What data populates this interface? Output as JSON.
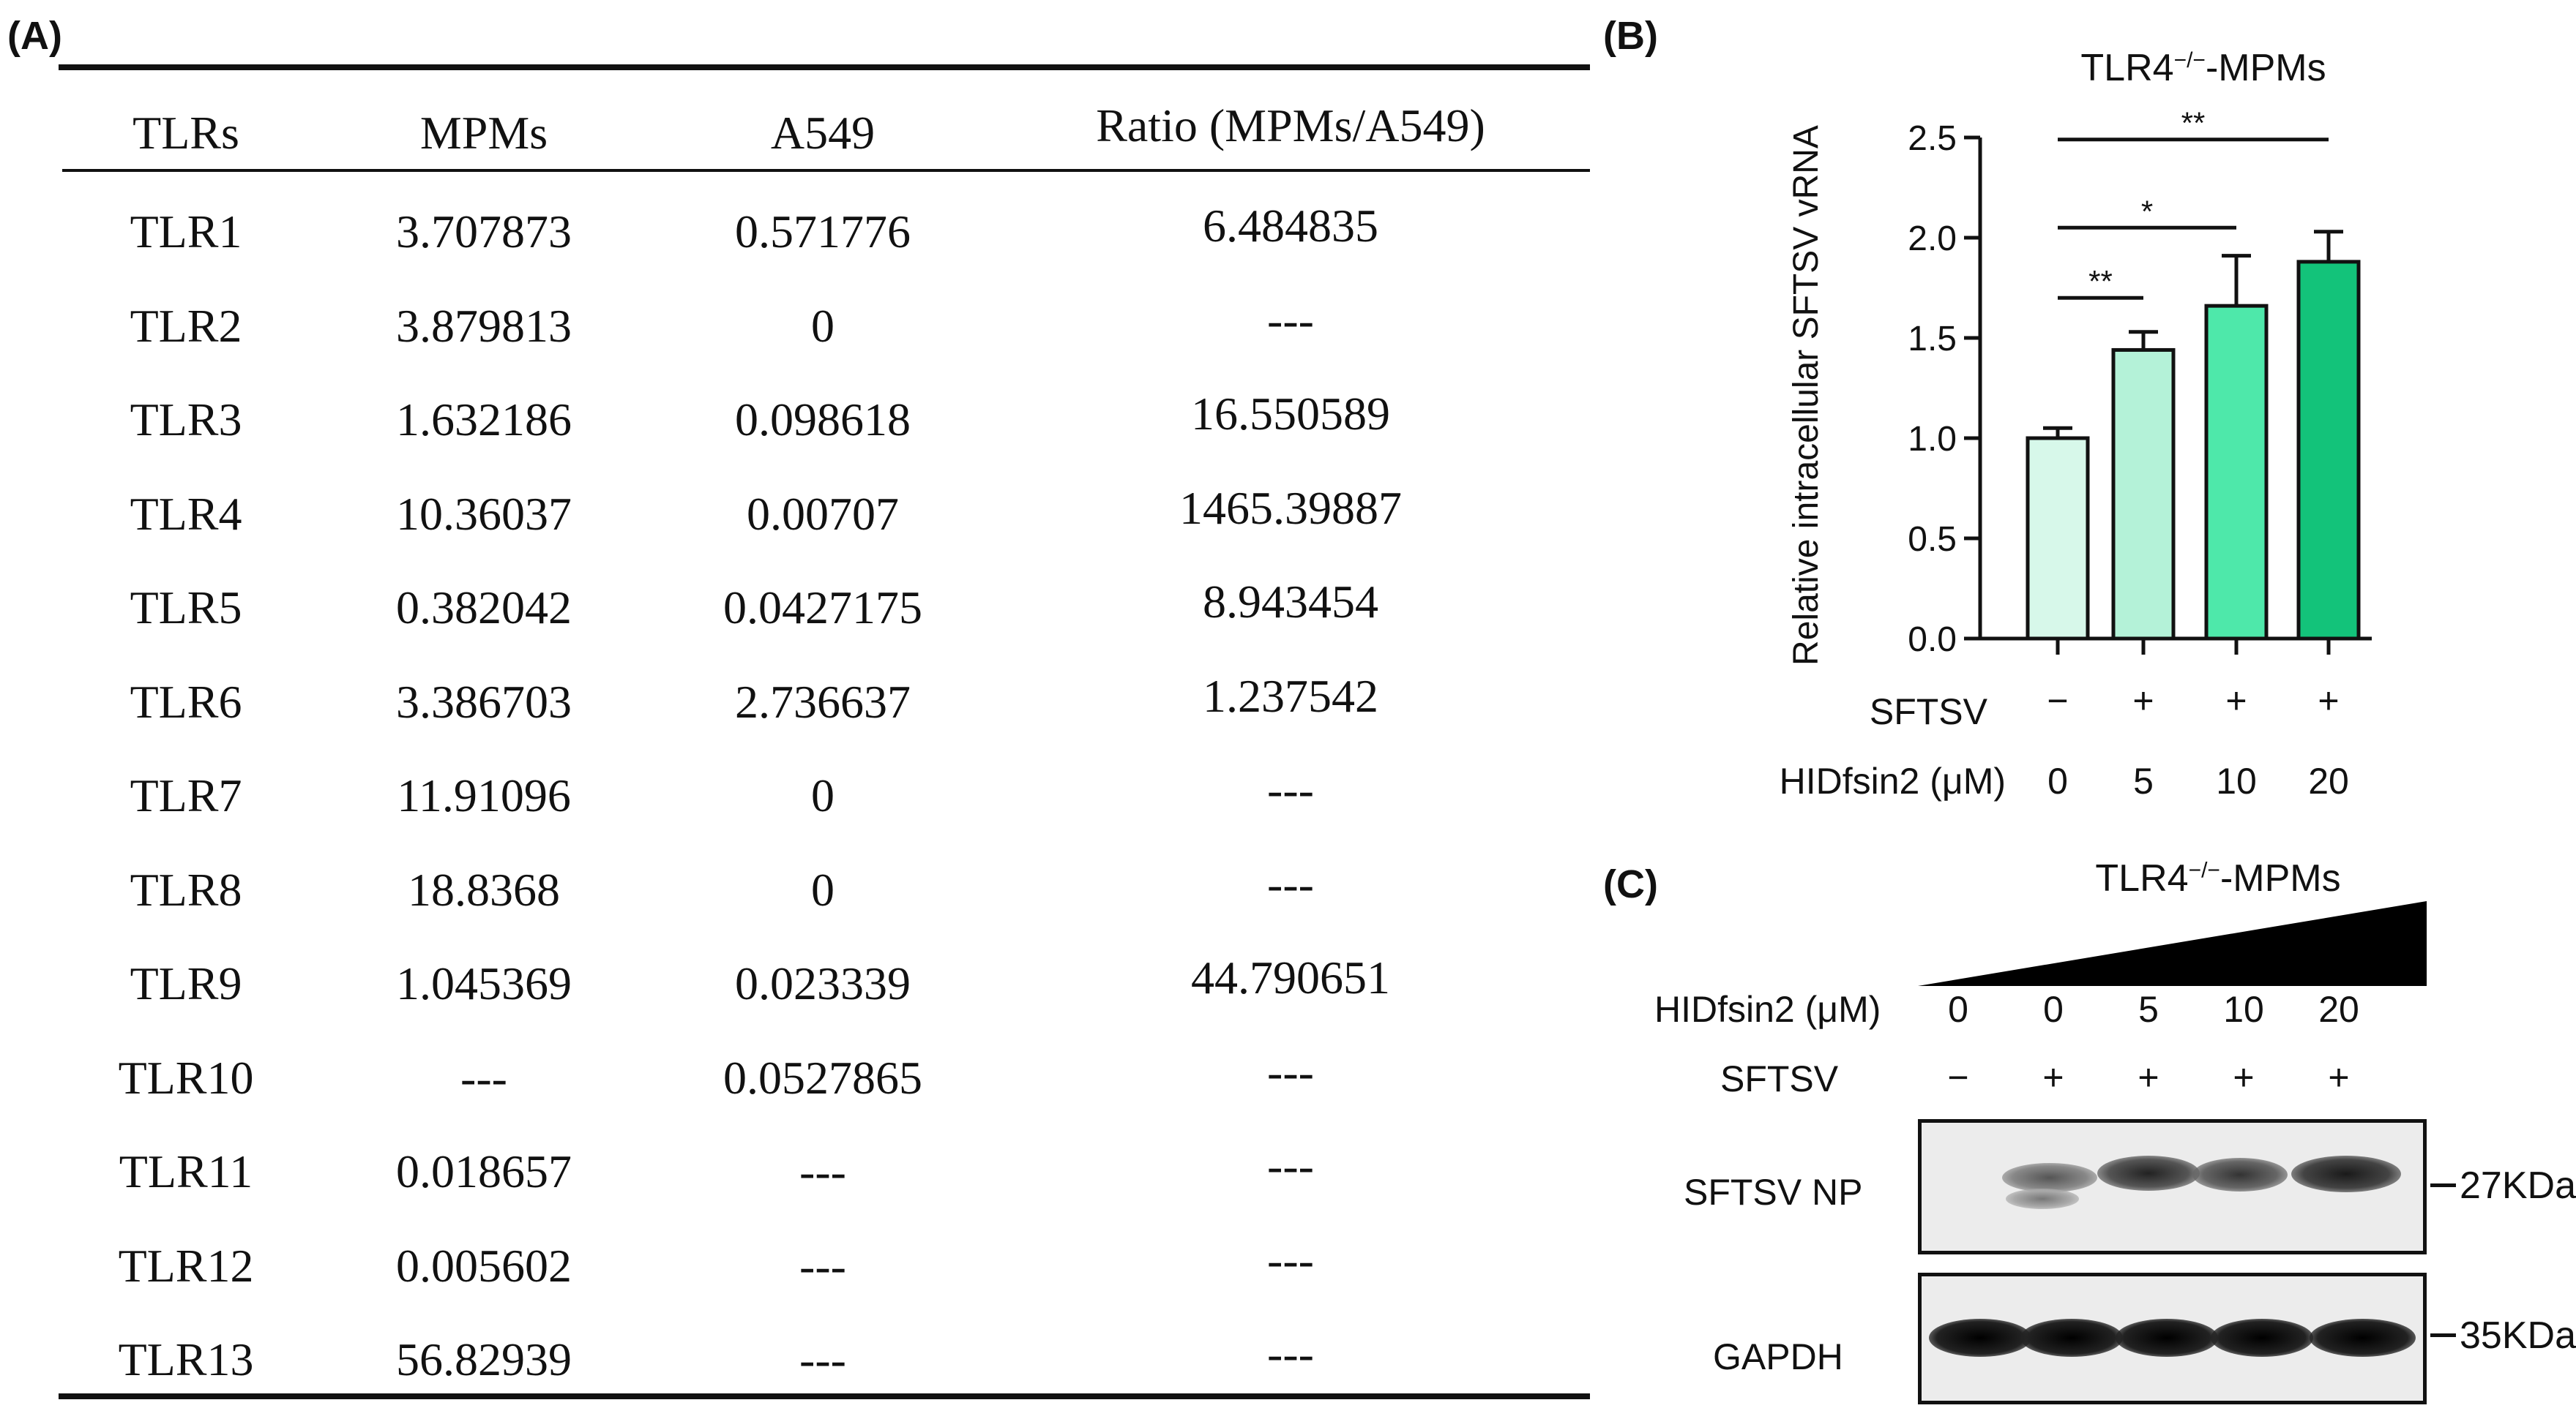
{
  "panel_a": {
    "label": "(A)",
    "headers": [
      "TLRs",
      "MPMs",
      "A549",
      "Ratio (MPMs/A549)"
    ],
    "rows": [
      [
        "TLR1",
        "3.707873",
        "0.571776",
        "6.484835"
      ],
      [
        "TLR2",
        "3.879813",
        "0",
        "---"
      ],
      [
        "TLR3",
        "1.632186",
        "0.098618",
        "16.550589"
      ],
      [
        "TLR4",
        "10.36037",
        "0.00707",
        "1465.39887"
      ],
      [
        "TLR5",
        "0.382042",
        "0.0427175",
        "8.943454"
      ],
      [
        "TLR6",
        "3.386703",
        "2.736637",
        "1.237542"
      ],
      [
        "TLR7",
        "11.91096",
        "0",
        "---"
      ],
      [
        "TLR8",
        "18.8368",
        "0",
        "---"
      ],
      [
        "TLR9",
        "1.045369",
        "0.023339",
        "44.790651"
      ],
      [
        "TLR10",
        "---",
        "0.0527865",
        "---"
      ],
      [
        "TLR11",
        "0.018657",
        "---",
        "---"
      ],
      [
        "TLR12",
        "0.005602",
        "---",
        "---"
      ],
      [
        "TLR13",
        "56.82939",
        "---",
        "---"
      ]
    ]
  },
  "panel_b": {
    "label": "(B)",
    "title_base": "TLR4",
    "title_sup": "−/−",
    "title_suffix": "-MPMs",
    "sftsv_label": "SFTSV",
    "hidfsin2_label": "HIDfsin2 (μM)"
  },
  "chart_data": {
    "type": "bar",
    "title": "TLR4−/−-MPMs",
    "ylabel": "Relative intracellular SFTSV vRNA",
    "xlabel": "",
    "ylim": [
      0,
      2.5
    ],
    "yticks": [
      "0.0",
      "0.5",
      "1.0",
      "1.5",
      "2.0",
      "2.5"
    ],
    "categories": [
      "0",
      "5",
      "10",
      "20"
    ],
    "sftsv": [
      "−",
      "+",
      "+",
      "+"
    ],
    "values": [
      1.0,
      1.44,
      1.66,
      1.88
    ],
    "errors": [
      0.05,
      0.09,
      0.25,
      0.15
    ],
    "colors": [
      "#d7f8ea",
      "#b4f2d8",
      "#4ee8aa",
      "#13c37a"
    ],
    "significance": [
      {
        "from": 0,
        "to": 1,
        "label": "**",
        "y": 1.7
      },
      {
        "from": 0,
        "to": 2,
        "label": "*",
        "y": 2.05
      },
      {
        "from": 0,
        "to": 3,
        "label": "**",
        "y": 2.49
      }
    ]
  },
  "panel_c": {
    "label": "(C)",
    "title_base": "TLR4",
    "title_sup": "−/−",
    "title_suffix": "-MPMs",
    "hidfsin2_label": "HIDfsin2 (μM)",
    "doses": [
      "0",
      "0",
      "5",
      "10",
      "20"
    ],
    "sftsv_label": "SFTSV",
    "sftsv": [
      "−",
      "+",
      "+",
      "+",
      "+"
    ],
    "blot1_label": "SFTSV NP",
    "blot1_kda": "27KDa",
    "blot2_label": "GAPDH",
    "blot2_kda": "35KDa"
  }
}
